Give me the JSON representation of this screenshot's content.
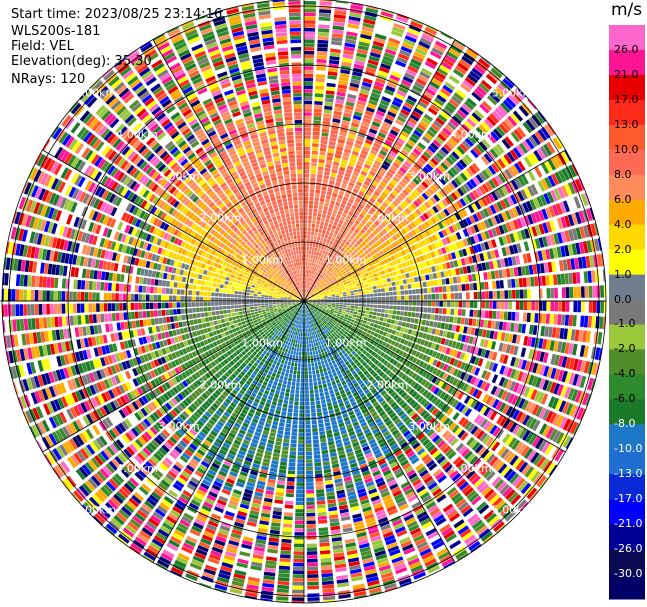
{
  "header": {
    "start_time": "Start time: 2023/08/25 23:14:16",
    "instrument": "WLS200s-181",
    "field": "Field: VEL",
    "elevation": "Elevation(deg): 35.30",
    "nrays": "NRays: 120"
  },
  "chart_data": {
    "type": "ppi",
    "field": "VEL",
    "units": "m/s",
    "n_rays": 120,
    "range_km": [
      0,
      5.2
    ],
    "range_ring_labels": [
      {
        "value": 1,
        "label": "1.00km"
      },
      {
        "value": 2,
        "label": "2.00km"
      },
      {
        "value": 3,
        "label": "3.00km"
      },
      {
        "value": 4,
        "label": "4.00km"
      },
      {
        "value": 5,
        "label": "5.00km"
      }
    ],
    "colorbar": {
      "title": "m/s",
      "levels": [
        -30.0,
        -26.0,
        -21.0,
        -17.0,
        -13.0,
        -10.0,
        -8.0,
        -6.0,
        -4.0,
        -2.0,
        -1.0,
        0.0,
        1.0,
        2.0,
        4.0,
        6.0,
        8.0,
        10.0,
        13.0,
        17.0,
        21.0,
        26.0
      ],
      "tick_labels": [
        "-30.0",
        "-26.0",
        "-21.0",
        "-17.0",
        "-13.0",
        "-10.0",
        "-8.0",
        "-6.0",
        "-4.0",
        "-2.0",
        "-1.0",
        "0.0",
        "1.0",
        "2.0",
        "4.0",
        "6.0",
        "8.0",
        "10.0",
        "13.0",
        "17.0",
        "21.0",
        "26.0"
      ],
      "colors": [
        "#000066",
        "#0a0a55",
        "#000099",
        "#0000ff",
        "#0a2ad8",
        "#1e6fd0",
        "#1e78c8",
        "#1a7a2a",
        "#2d8a2d",
        "#4f8e2a",
        "#9ac83a",
        "#7a7a7a",
        "#6e7e8e",
        "#ffff00",
        "#ffd800",
        "#ffaa00",
        "#ff8c5a",
        "#ff6a55",
        "#ff5a2e",
        "#ff2a1a",
        "#e80000",
        "#ff1493",
        "#ff66cc"
      ]
    },
    "pattern": "near-field velocities negative south of radar (green/blue), positive north (yellow/orange/salmon); outer ranges noisy"
  }
}
